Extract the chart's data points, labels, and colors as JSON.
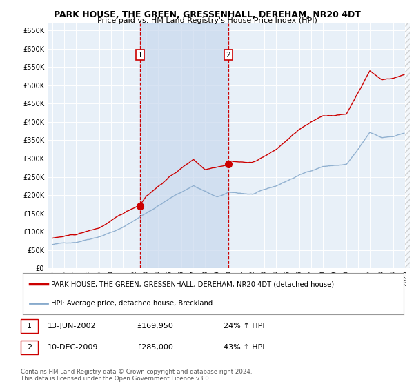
{
  "title": "PARK HOUSE, THE GREEN, GRESSENHALL, DEREHAM, NR20 4DT",
  "subtitle": "Price paid vs. HM Land Registry's House Price Index (HPI)",
  "legend_line1": "PARK HOUSE, THE GREEN, GRESSENHALL, DEREHAM, NR20 4DT (detached house)",
  "legend_line2": "HPI: Average price, detached house, Breckland",
  "transaction1_date": "13-JUN-2002",
  "transaction1_price": "£169,950",
  "transaction1_hpi": "24% ↑ HPI",
  "transaction2_date": "10-DEC-2009",
  "transaction2_price": "£285,000",
  "transaction2_hpi": "43% ↑ HPI",
  "footer": "Contains HM Land Registry data © Crown copyright and database right 2024.\nThis data is licensed under the Open Government Licence v3.0.",
  "red_color": "#cc0000",
  "blue_color": "#88aacc",
  "shade_color": "#ddeeff",
  "background_color": "#e8f0f8",
  "grid_color": "#ffffff",
  "marker1_x": 2002.458,
  "marker1_y": 169950,
  "marker2_x": 2009.958,
  "marker2_y": 285000,
  "vline1_x": 2002.458,
  "vline2_x": 2009.958,
  "ylim": [
    0,
    670000
  ],
  "xlim": [
    1994.6,
    2025.4
  ],
  "yticks": [
    0,
    50000,
    100000,
    150000,
    200000,
    250000,
    300000,
    350000,
    400000,
    450000,
    500000,
    550000,
    600000,
    650000
  ]
}
